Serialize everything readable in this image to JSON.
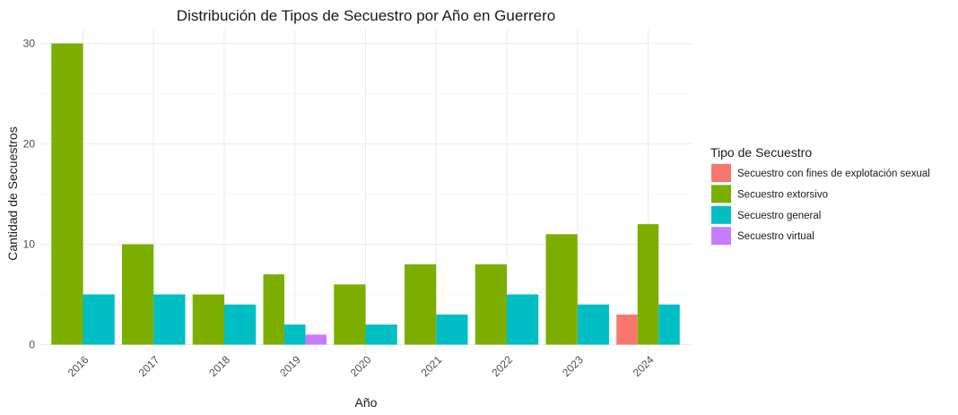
{
  "chart_data": {
    "type": "bar",
    "title": "Distribución de Tipos de Secuestro por Año en Guerrero",
    "xlabel": "Año",
    "ylabel": "Cantidad de Secuestros",
    "categories": [
      "2016",
      "2017",
      "2018",
      "2019",
      "2020",
      "2021",
      "2022",
      "2023",
      "2024"
    ],
    "ylim": [
      0,
      32
    ],
    "yticks": [
      0,
      10,
      20,
      30
    ],
    "grid": true,
    "legend": {
      "title": "Tipo de Secuestro",
      "position": "right"
    },
    "series": [
      {
        "name": "Secuestro con fines de explotación sexual",
        "color": "#F8766D",
        "values": [
          null,
          null,
          null,
          null,
          null,
          null,
          null,
          null,
          3
        ]
      },
      {
        "name": "Secuestro extorsivo",
        "color": "#7CAE00",
        "values": [
          30,
          10,
          5,
          7,
          6,
          8,
          8,
          11,
          12
        ]
      },
      {
        "name": "Secuestro general",
        "color": "#00BFC4",
        "values": [
          5,
          5,
          4,
          2,
          2,
          3,
          5,
          4,
          4
        ]
      },
      {
        "name": "Secuestro virtual",
        "color": "#C77CFF",
        "values": [
          null,
          null,
          null,
          1,
          null,
          null,
          null,
          null,
          null
        ]
      }
    ]
  }
}
